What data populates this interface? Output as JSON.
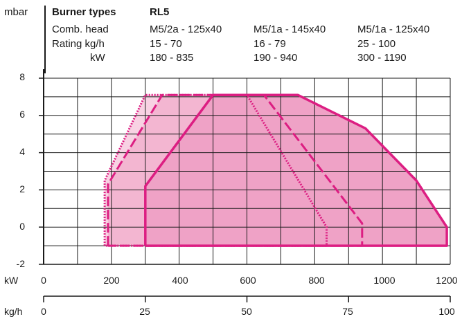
{
  "header": {
    "y_unit": "mbar",
    "burner_types_label": "Burner types",
    "model": "RL5",
    "comb_head_label": "Comb. head",
    "rating_label": "Rating kg/h",
    "kw_label": "kW",
    "columns": [
      {
        "comb_head": "M5/2a - 125x40",
        "rating_kgh": "15 - 70",
        "kw": "180 - 835"
      },
      {
        "comb_head": "M5/1a - 145x40",
        "rating_kgh": "16 - 79",
        "kw": "190 - 940"
      },
      {
        "comb_head": "M5/1a - 125x40",
        "rating_kgh": "25 - 100",
        "kw": "300 - 1190"
      }
    ]
  },
  "axes": {
    "x_kw_label": "kW",
    "x_kgh_label": "kg/h",
    "y_ticks": [
      "8",
      "6",
      "4",
      "2",
      "0",
      "-2"
    ],
    "x_kw_ticks": [
      "0",
      "200",
      "400",
      "600",
      "800",
      "1000",
      "1200"
    ],
    "x_kgh_ticks": [
      "0",
      "25",
      "50",
      "75",
      "100"
    ]
  },
  "colors": {
    "magenta": "#dc1e82",
    "fill_light": "#f8d2e3",
    "fill_medium": "#f3b6d1",
    "fill_dark": "#efa2c6",
    "grid": "#1a1a1a"
  },
  "chart_data": {
    "type": "area",
    "xlabel": "kW",
    "ylabel": "mbar",
    "xlim": [
      0,
      1200
    ],
    "ylim": [
      -2,
      8
    ],
    "secondary_x": {
      "label": "kg/h",
      "range": [
        0,
        100
      ],
      "ticks": [
        0,
        25,
        50,
        75,
        100
      ]
    },
    "grid": true,
    "series": [
      {
        "name": "M5/2a - 125x40",
        "style": "dotted",
        "fill": "light",
        "x": [
          180,
          180,
          300,
          600,
          835,
          835,
          180
        ],
        "y": [
          -1,
          2.5,
          7.1,
          7.1,
          0,
          -1,
          -1
        ]
      },
      {
        "name": "M5/1a - 145x40",
        "style": "dashed",
        "fill": "medium",
        "x": [
          190,
          190,
          350,
          650,
          940,
          940,
          190
        ],
        "y": [
          -1,
          2.3,
          7.1,
          7.1,
          0.2,
          -1,
          -1
        ]
      },
      {
        "name": "M5/1a - 125x40",
        "style": "solid",
        "fill": "dark",
        "x": [
          300,
          300,
          500,
          750,
          950,
          1100,
          1190,
          1190,
          300
        ],
        "y": [
          -1,
          2.2,
          7.1,
          7.1,
          5.3,
          2.5,
          0,
          -1,
          -1
        ]
      }
    ]
  }
}
